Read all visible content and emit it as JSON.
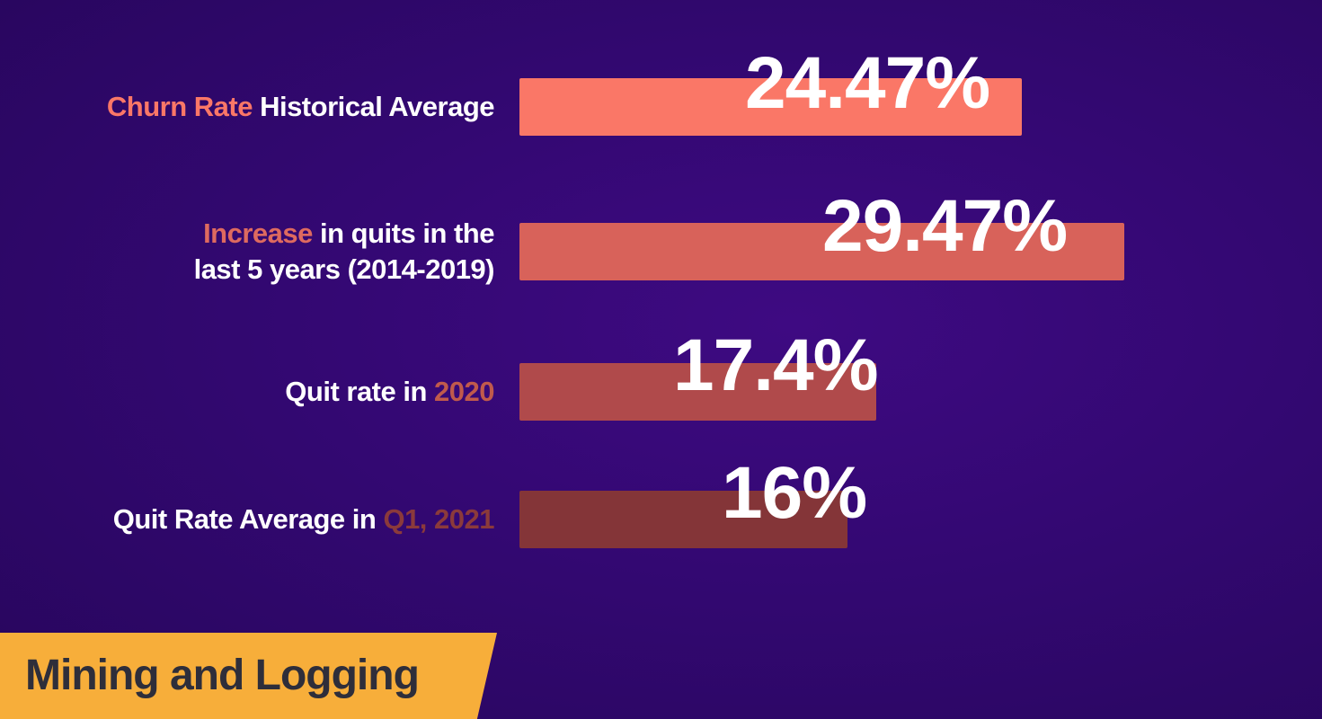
{
  "category": "Mining and Logging",
  "chart_data": {
    "type": "bar",
    "orientation": "horizontal",
    "categories": [
      "Churn Rate Historical Average",
      "Increase in quits in the last 5 years (2014-2019)",
      "Quit rate in 2020",
      "Quit Rate Average in Q1, 2021"
    ],
    "values": [
      24.47,
      29.47,
      17.4,
      16
    ],
    "value_labels": [
      "24.47%",
      "29.47%",
      "17.4%",
      "16%"
    ],
    "label_segments": [
      [
        {
          "text": "Churn Rate",
          "highlight": true
        },
        {
          "text": " Historical Average",
          "highlight": false
        }
      ],
      [
        {
          "text": "Increase",
          "highlight": true
        },
        {
          "text": " in quits in the",
          "highlight": false
        },
        {
          "text": "\n",
          "highlight": false
        },
        {
          "text": "last 5 years (2014-2019)",
          "highlight": false
        }
      ],
      [
        {
          "text": "Quit rate in ",
          "highlight": false
        },
        {
          "text": "2020",
          "highlight": true
        }
      ],
      [
        {
          "text": "Quit Rate Average in ",
          "highlight": false
        },
        {
          "text": "Q1, 2021",
          "highlight": true
        }
      ]
    ],
    "bar_colors": [
      "#fa7767",
      "#d8625a",
      "#b04a4b",
      "#843538"
    ],
    "label_highlight_colors": [
      "#fa7767",
      "#de6a5f",
      "#c05a4c",
      "#8b3a3b"
    ],
    "xlim": [
      0,
      29.47
    ],
    "legend": false,
    "grid": false
  }
}
